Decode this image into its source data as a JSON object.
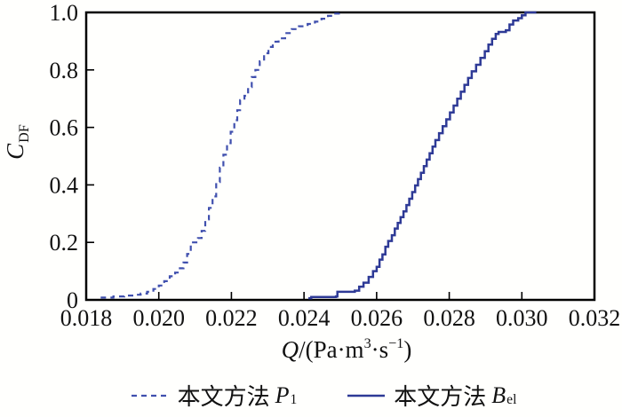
{
  "chart_data": {
    "type": "line",
    "subtype": "empirical-cdf-step",
    "title": "",
    "xlabel": "Q/(Pa·m³·s⁻¹)",
    "ylabel": "C_DF",
    "xlim": [
      0.018,
      0.032
    ],
    "ylim": [
      0,
      1.0
    ],
    "xticks": [
      0.018,
      0.02,
      0.022,
      0.024,
      0.026,
      0.028,
      0.03,
      0.032
    ],
    "xtick_labels": [
      "0.018",
      "0.020",
      "0.022",
      "0.024",
      "0.026",
      "0.028",
      "0.030",
      "0.032"
    ],
    "yticks": [
      0,
      0.2,
      0.4,
      0.6,
      0.8,
      1.0
    ],
    "ytick_labels": [
      "0",
      "0.2",
      "0.4",
      "0.6",
      "0.8",
      "1.0"
    ],
    "grid": false,
    "frame": true,
    "axis_color": "#000000",
    "tick_label_color": "#111111",
    "legend_position": "below-chart",
    "series": [
      {
        "name": "本文方法 P1",
        "style": "dashed",
        "color": "#4050ae",
        "width": 2.2,
        "dash": "6 5",
        "points": [
          [
            0.0184,
            0.008
          ],
          [
            0.01875,
            0.012
          ],
          [
            0.01905,
            0.015
          ],
          [
            0.0193,
            0.018
          ],
          [
            0.0195,
            0.022
          ],
          [
            0.01968,
            0.028
          ],
          [
            0.01985,
            0.038
          ],
          [
            0.02,
            0.05
          ],
          [
            0.02015,
            0.065
          ],
          [
            0.0203,
            0.082
          ],
          [
            0.02045,
            0.095
          ],
          [
            0.02058,
            0.11
          ],
          [
            0.02068,
            0.13
          ],
          [
            0.02078,
            0.16
          ],
          [
            0.02088,
            0.2
          ],
          [
            0.02108,
            0.215
          ],
          [
            0.02118,
            0.24
          ],
          [
            0.02128,
            0.28
          ],
          [
            0.02138,
            0.32
          ],
          [
            0.02148,
            0.36
          ],
          [
            0.02158,
            0.41
          ],
          [
            0.02168,
            0.46
          ],
          [
            0.02178,
            0.505
          ],
          [
            0.02188,
            0.545
          ],
          [
            0.02198,
            0.585
          ],
          [
            0.02208,
            0.625
          ],
          [
            0.02216,
            0.66
          ],
          [
            0.02224,
            0.695
          ],
          [
            0.02236,
            0.71
          ],
          [
            0.02246,
            0.74
          ],
          [
            0.02256,
            0.775
          ],
          [
            0.02266,
            0.8
          ],
          [
            0.02278,
            0.83
          ],
          [
            0.0229,
            0.858
          ],
          [
            0.02302,
            0.88
          ],
          [
            0.02314,
            0.898
          ],
          [
            0.0233,
            0.91
          ],
          [
            0.02348,
            0.928
          ],
          [
            0.02366,
            0.942
          ],
          [
            0.02386,
            0.952
          ],
          [
            0.0241,
            0.96
          ],
          [
            0.0243,
            0.968
          ],
          [
            0.02448,
            0.978
          ],
          [
            0.02466,
            0.988
          ],
          [
            0.02486,
            0.996
          ],
          [
            0.02496,
            1.0
          ]
        ]
      },
      {
        "name": "本文方法 Bel",
        "style": "solid",
        "color": "#2e3a96",
        "width": 2.5,
        "dash": "",
        "points": [
          [
            0.02412,
            0.006
          ],
          [
            0.0242,
            0.01
          ],
          [
            0.02488,
            0.012
          ],
          [
            0.02492,
            0.028
          ],
          [
            0.0254,
            0.032
          ],
          [
            0.02552,
            0.046
          ],
          [
            0.02564,
            0.06
          ],
          [
            0.02578,
            0.08
          ],
          [
            0.0259,
            0.1
          ],
          [
            0.026,
            0.115
          ],
          [
            0.02608,
            0.14
          ],
          [
            0.02616,
            0.158
          ],
          [
            0.02624,
            0.185
          ],
          [
            0.02632,
            0.205
          ],
          [
            0.02642,
            0.225
          ],
          [
            0.0265,
            0.248
          ],
          [
            0.02658,
            0.268
          ],
          [
            0.02666,
            0.288
          ],
          [
            0.02674,
            0.308
          ],
          [
            0.02682,
            0.33
          ],
          [
            0.0269,
            0.352
          ],
          [
            0.02698,
            0.375
          ],
          [
            0.02706,
            0.398
          ],
          [
            0.02714,
            0.42
          ],
          [
            0.02722,
            0.442
          ],
          [
            0.0273,
            0.465
          ],
          [
            0.02738,
            0.488
          ],
          [
            0.02746,
            0.51
          ],
          [
            0.02754,
            0.533
          ],
          [
            0.02762,
            0.556
          ],
          [
            0.02772,
            0.58
          ],
          [
            0.02782,
            0.604
          ],
          [
            0.02792,
            0.628
          ],
          [
            0.02802,
            0.652
          ],
          [
            0.02812,
            0.676
          ],
          [
            0.02822,
            0.7
          ],
          [
            0.02832,
            0.724
          ],
          [
            0.02842,
            0.748
          ],
          [
            0.02852,
            0.772
          ],
          [
            0.02862,
            0.795
          ],
          [
            0.02874,
            0.818
          ],
          [
            0.02886,
            0.842
          ],
          [
            0.02898,
            0.865
          ],
          [
            0.02908,
            0.888
          ],
          [
            0.02918,
            0.908
          ],
          [
            0.02928,
            0.925
          ],
          [
            0.02936,
            0.932
          ],
          [
            0.02956,
            0.938
          ],
          [
            0.02966,
            0.958
          ],
          [
            0.02976,
            0.972
          ],
          [
            0.0299,
            0.98
          ],
          [
            0.03,
            0.99
          ],
          [
            0.0301,
            1.0
          ],
          [
            0.0304,
            1.0
          ]
        ]
      }
    ]
  },
  "labels": {
    "xlabel_var": "Q",
    "xlabel_mid1": "/(Pa·m",
    "xlabel_sup1": "3",
    "xlabel_mid2": "·s",
    "xlabel_sup2": "−1",
    "xlabel_end": ")",
    "ylabel_var": "C",
    "ylabel_sub": "DF"
  },
  "legend": {
    "entries": [
      {
        "text": "本文方法",
        "var": "P",
        "sub": "1"
      },
      {
        "text": "本文方法",
        "var": "B",
        "sub": "el"
      }
    ]
  }
}
